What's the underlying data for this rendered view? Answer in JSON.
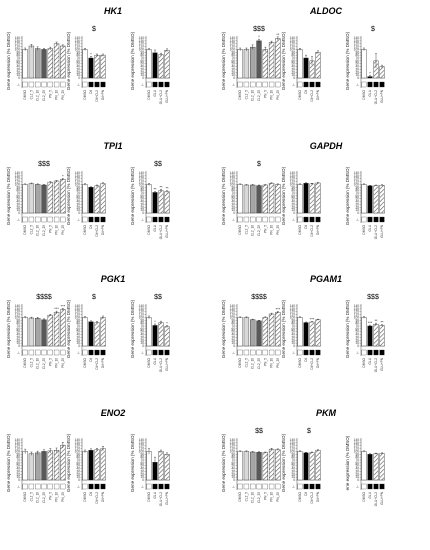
{
  "figure": {
    "ylabel": "Gene expression (% DMSO)",
    "ylabel_truncated": "ene expression (% DMSO)",
    "yticks": [
      "0",
      "10",
      "20",
      "30",
      "40",
      "50",
      "60",
      "70",
      "80",
      "90",
      "100",
      "110",
      "120",
      "130",
      "140"
    ],
    "ylim": [
      0,
      140
    ],
    "legend_marker_label": "-/-",
    "marker_label_alt": "-/-"
  },
  "chart_data": [
    {
      "type": "bar",
      "gene": "HK1",
      "title": "HK1",
      "panels": [
        {
          "sig": "",
          "categories": [
            "DMSO",
            "CL2_5",
            "CL2_10",
            "CL2_25",
            "PN_5",
            "PN_10",
            "PN_25"
          ],
          "values": [
            100,
            112,
            103,
            100,
            103,
            120,
            112
          ],
          "errors": [
            5,
            6,
            6,
            4,
            5,
            6,
            4
          ],
          "stars": [
            "",
            "",
            "",
            "",
            "",
            "",
            ""
          ]
        },
        {
          "sig": "$",
          "categories": [
            "DMSO",
            "Dil",
            "Dil+CL2",
            "Dil+PN"
          ],
          "values": [
            100,
            70,
            80,
            80
          ],
          "errors": [
            4,
            6,
            4,
            4
          ],
          "stars": [
            "",
            "*",
            "",
            ""
          ]
        },
        {
          "sig": "",
          "categories": [
            "DMSO",
            "GLU",
            "GLU+CL2",
            "GLU+PN"
          ],
          "values": [
            100,
            88,
            82,
            97
          ],
          "errors": [
            3,
            10,
            5,
            5
          ],
          "stars": [
            "",
            "",
            "",
            ""
          ]
        }
      ]
    },
    {
      "type": "bar",
      "gene": "ALDOC",
      "title": "ALDOC",
      "panels": [
        {
          "sig": "$$$",
          "categories": [
            "DMSO",
            "CL2_5",
            "CL2_10",
            "CL2_25",
            "PN_5",
            "PN_10",
            "PN_25"
          ],
          "values": [
            100,
            100,
            108,
            130,
            100,
            125,
            138
          ],
          "errors": [
            5,
            5,
            8,
            6,
            8,
            4,
            6
          ],
          "stars": [
            "",
            "",
            "",
            "*",
            "",
            "",
            "**"
          ]
        },
        {
          "sig": "",
          "categories": [
            "DMSO",
            "Dil",
            "Dil+CL2",
            "Dil+PN"
          ],
          "values": [
            100,
            70,
            60,
            90
          ],
          "errors": [
            4,
            10,
            15,
            5
          ],
          "stars": [
            "",
            "",
            "",
            ""
          ]
        },
        {
          "sig": "$",
          "categories": [
            "DMSO",
            "GLU",
            "GLU+CL2",
            "GLU+PN"
          ],
          "values": [
            100,
            5,
            60,
            40
          ],
          "errors": [
            5,
            3,
            25,
            5
          ],
          "stars": [
            "",
            "*",
            "",
            ""
          ]
        }
      ]
    },
    {
      "type": "bar",
      "gene": "TPI1",
      "title": "TPI1",
      "panels": [
        {
          "sig": "$$$",
          "categories": [
            "DMSO",
            "CL2_5",
            "CL2_10",
            "CL2_25",
            "PN_5",
            "PN_10",
            "PN_25"
          ],
          "values": [
            100,
            103,
            100,
            98,
            108,
            112,
            118
          ],
          "errors": [
            2,
            2,
            2,
            2,
            2,
            2,
            3
          ],
          "stars": [
            "",
            "",
            "",
            "",
            "",
            "",
            "*"
          ]
        },
        {
          "sig": "",
          "categories": [
            "DMSO",
            "Dil",
            "Dil+CL2",
            "Dil+PN"
          ],
          "values": [
            100,
            90,
            95,
            103
          ],
          "errors": [
            3,
            2,
            3,
            3
          ],
          "stars": [
            "",
            "",
            "",
            ""
          ]
        },
        {
          "sig": "$$",
          "categories": [
            "DMSO",
            "GLU",
            "GLU+CL2",
            "GLU+PN"
          ],
          "values": [
            100,
            72,
            78,
            75
          ],
          "errors": [
            4,
            3,
            5,
            3
          ],
          "stars": [
            "",
            "**",
            "**",
            "**"
          ]
        }
      ]
    },
    {
      "type": "bar",
      "gene": "GAPDH",
      "title": "GAPDH",
      "panels": [
        {
          "sig": "$",
          "categories": [
            "DMSO",
            "CL2_5",
            "CL2_10",
            "CL2_25",
            "PN_5",
            "PN_10",
            "PN_25"
          ],
          "values": [
            100,
            98,
            98,
            96,
            98,
            104,
            100
          ],
          "errors": [
            2,
            2,
            2,
            2,
            2,
            2,
            2
          ],
          "stars": [
            "",
            "",
            "",
            "",
            "",
            "",
            ""
          ]
        },
        {
          "sig": "",
          "categories": [
            "DMSO",
            "Dil",
            "Dil+CL2",
            "Dil+PN"
          ],
          "values": [
            100,
            104,
            102,
            105
          ],
          "errors": [
            2,
            2,
            2,
            2
          ],
          "stars": [
            "",
            "",
            "",
            ""
          ]
        },
        {
          "sig": "",
          "categories": [
            "DMSO",
            "GLU",
            "GLU+CL2",
            "GLU+PN"
          ],
          "values": [
            100,
            95,
            96,
            97
          ],
          "errors": [
            2,
            2,
            2,
            2
          ],
          "stars": [
            "",
            "",
            "",
            ""
          ]
        }
      ]
    },
    {
      "type": "bar",
      "gene": "PGK1",
      "title": "PGK1",
      "panels": [
        {
          "sig": "$$$$",
          "categories": [
            "DMSO",
            "CL2_5",
            "CL2_10",
            "CL2_25",
            "PN_5",
            "PN_10",
            "PN_25"
          ],
          "values": [
            100,
            98,
            97,
            92,
            108,
            118,
            128
          ],
          "errors": [
            3,
            3,
            3,
            3,
            3,
            4,
            4
          ],
          "stars": [
            "",
            "",
            "",
            "",
            "",
            "***",
            "***"
          ]
        },
        {
          "sig": "$",
          "categories": [
            "DMSO",
            "Dil",
            "Dil+CL2",
            "Dil+PN"
          ],
          "values": [
            100,
            85,
            82,
            100
          ],
          "errors": [
            3,
            3,
            4,
            5
          ],
          "stars": [
            "",
            "",
            "",
            ""
          ]
        },
        {
          "sig": "$$",
          "categories": [
            "DMSO",
            "GLU",
            "GLU+CL2",
            "GLU+PN"
          ],
          "values": [
            100,
            72,
            82,
            68
          ],
          "errors": [
            5,
            5,
            5,
            4
          ],
          "stars": [
            "",
            "*",
            "",
            "*"
          ]
        }
      ]
    },
    {
      "type": "bar",
      "gene": "PGAM1",
      "title": "PGAM1",
      "panels": [
        {
          "sig": "$$$$",
          "categories": [
            "DMSO",
            "CL2_5",
            "CL2_10",
            "CL2_25",
            "PN_5",
            "PN_10",
            "PN_25"
          ],
          "values": [
            100,
            100,
            92,
            88,
            100,
            112,
            118
          ],
          "errors": [
            2,
            2,
            2,
            2,
            2,
            3,
            3
          ],
          "stars": [
            "",
            "",
            "",
            "",
            "",
            "",
            "***"
          ]
        },
        {
          "sig": "",
          "categories": [
            "DMSO",
            "Dil",
            "Dil+CL2",
            "Dil+PN"
          ],
          "values": [
            100,
            82,
            84,
            92
          ],
          "errors": [
            2,
            2,
            2,
            2
          ],
          "stars": [
            "",
            "",
            "***",
            ""
          ]
        },
        {
          "sig": "$$$",
          "categories": [
            "DMSO",
            "GLU",
            "GLU+CL2",
            "GLU+PN"
          ],
          "values": [
            100,
            70,
            76,
            72
          ],
          "errors": [
            3,
            3,
            4,
            3
          ],
          "stars": [
            "",
            "***",
            "**",
            "**"
          ]
        }
      ]
    },
    {
      "type": "bar",
      "gene": "ENO2",
      "title": "ENO2",
      "panels": [
        {
          "sig": "",
          "categories": [
            "DMSO",
            "CL2_5",
            "CL2_10",
            "CL2_25",
            "PN_5",
            "PN_10",
            "PN_25"
          ],
          "values": [
            100,
            92,
            95,
            100,
            102,
            104,
            122
          ],
          "errors": [
            8,
            6,
            6,
            6,
            8,
            8,
            10
          ],
          "stars": [
            "",
            "",
            "",
            "",
            "",
            "",
            ""
          ]
        },
        {
          "sig": "",
          "categories": [
            "DMSO",
            "Dil",
            "Dil+CL2",
            "Dil+PN"
          ],
          "values": [
            100,
            104,
            106,
            110
          ],
          "errors": [
            5,
            5,
            5,
            8
          ],
          "stars": [
            "",
            "",
            "",
            ""
          ]
        },
        {
          "sig": "",
          "categories": [
            "DMSO",
            "GLU",
            "GLU+CL2",
            "GLU+PN"
          ],
          "values": [
            100,
            62,
            100,
            90
          ],
          "errors": [
            10,
            18,
            5,
            5
          ],
          "stars": [
            "",
            "",
            "",
            ""
          ]
        }
      ]
    },
    {
      "type": "bar",
      "gene": "PKM",
      "title": "PKM",
      "panels": [
        {
          "sig": "$$",
          "categories": [
            "DMSO",
            "CL2_5",
            "CL2_10",
            "CL2_25",
            "PN_5",
            "PN_10",
            "PN_25"
          ],
          "values": [
            100,
            100,
            98,
            97,
            96,
            108,
            106
          ],
          "errors": [
            2,
            2,
            2,
            2,
            2,
            3,
            3
          ],
          "stars": [
            "",
            "",
            "",
            "",
            "",
            "",
            ""
          ]
        },
        {
          "sig": "$",
          "categories": [
            "DMSO",
            "Dil",
            "Dil+CL2",
            "Dil+PN"
          ],
          "values": [
            100,
            95,
            96,
            104
          ],
          "errors": [
            2,
            2,
            2,
            2
          ],
          "stars": [
            "",
            "",
            "",
            ""
          ]
        },
        {
          "sig": "",
          "categories": [
            "DMSO",
            "GLU",
            "GLU+CL2",
            "GLU+PN"
          ],
          "values": [
            100,
            90,
            92,
            93
          ],
          "errors": [
            2,
            2,
            2,
            2
          ],
          "stars": [
            "",
            "",
            "",
            ""
          ]
        }
      ]
    }
  ],
  "colors": {
    "gray_scale": [
      "#ffffff",
      "#d9d9d9",
      "#a6a6a6",
      "#595959"
    ],
    "black": "#000000",
    "hatch": "#555555",
    "axis": "#666666"
  }
}
